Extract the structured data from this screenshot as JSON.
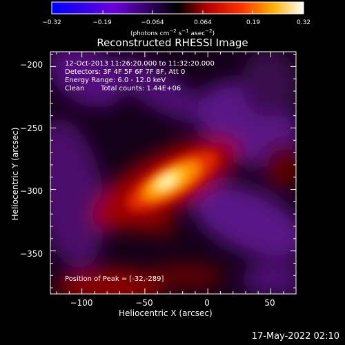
{
  "chart_data": {
    "type": "heatmap",
    "title": "Reconstructed RHESSI Image",
    "xlabel": "Heliocentric X (arcsec)",
    "ylabel": "Heliocentric Y (arcsec)",
    "xlim": [
      -125,
      70
    ],
    "ylim": [
      -385,
      -188
    ],
    "x_ticks": [
      -100,
      -50,
      0,
      50
    ],
    "x_tick_labels": [
      "−100",
      "−50",
      "0",
      "50"
    ],
    "y_ticks": [
      -200,
      -250,
      -300,
      -350
    ],
    "y_tick_labels": [
      "−200",
      "−250",
      "−300",
      "−350"
    ],
    "colorbar": {
      "ticks": [
        -0.32,
        -0.19,
        -0.064,
        0.064,
        0.19,
        0.32
      ],
      "tick_labels": [
        "−0.32",
        "−0.19",
        "−0.064",
        "0.064",
        "0.19",
        "0.32"
      ],
      "range": [
        -0.32,
        0.32
      ],
      "label_main": "(photons cm",
      "label_exp1": "−2",
      "label_mid": " s",
      "label_exp2": "−1",
      "label_end": " asec",
      "label_exp3": "−2",
      "label_close": ")"
    },
    "annotations": {
      "time_range": "12-Oct-2013 11:26:20.000 to 11:32:20.000",
      "detectors": "Detectors: 3F 4F 5F 6F 7F 8F, Att 0",
      "energy_range": "Energy Range: 6.0 - 12.0 keV",
      "clean": "Clean",
      "total_counts": "Total counts: 1.44E+06",
      "peak": "Position of Peak = [-32,-289]"
    },
    "peak": {
      "x": -32,
      "y": -289,
      "value": 0.32
    }
  },
  "footer": {
    "date": "17-May-2022 02:10"
  }
}
